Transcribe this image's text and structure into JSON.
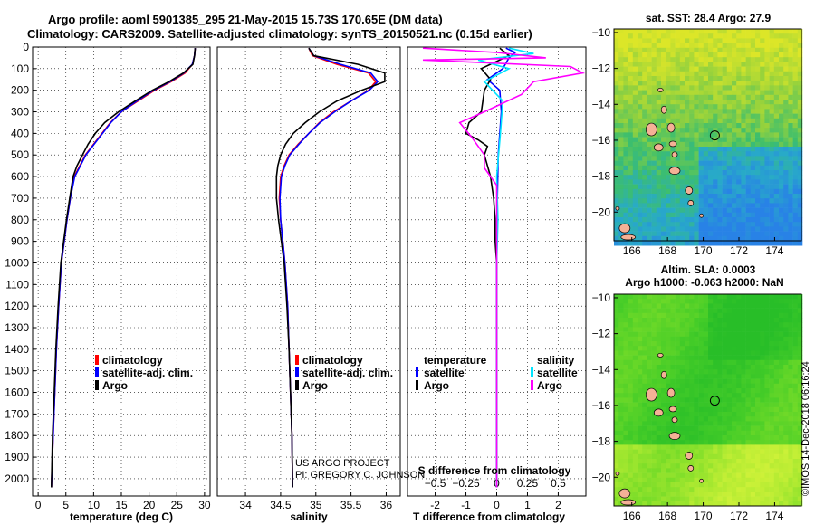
{
  "title_line1": "Argo profile: aoml 5901385_295 21-May-2015 15.73S 170.65E (DM data)",
  "title_line2": "Climatology: CARS2009. Satellite-adjusted climatology: synTS_20150521.nc (0.15d earlier)",
  "colors": {
    "climatology": "#ff0000",
    "satellite": "#0000ff",
    "argo": "#000000",
    "sat_salinity": "#00e5ff",
    "argo_salinity": "#ff00ff",
    "land": "#f4b196"
  },
  "credits": {
    "line1": "US ARGO PROJECT",
    "line2": "PI: GREGORY C. JOHNSON"
  },
  "watermark": "©IMOS 14-Dec-2018 06:16:24",
  "chart_data": [
    {
      "id": "temperature",
      "type": "line",
      "xlabel": "temperature (deg C)",
      "xlim": [
        -1,
        31
      ],
      "xticks": [
        0,
        5,
        10,
        15,
        20,
        25,
        30
      ],
      "ylim": [
        2080,
        0
      ],
      "yticks": [
        0,
        100,
        200,
        300,
        400,
        500,
        600,
        700,
        800,
        900,
        1000,
        1100,
        1200,
        1300,
        1400,
        1500,
        1600,
        1700,
        1800,
        1900,
        2000
      ],
      "legend": {
        "placement": "lower-center",
        "entries": [
          "climatology",
          "satellite-adj. clim.",
          "Argo"
        ]
      },
      "series": [
        {
          "name": "climatology",
          "color": "#ff0000",
          "points": [
            [
              28.3,
              5
            ],
            [
              28.2,
              40
            ],
            [
              27.8,
              80
            ],
            [
              26.5,
              120
            ],
            [
              24,
              160
            ],
            [
              21,
              200
            ],
            [
              18,
              250
            ],
            [
              15,
              300
            ],
            [
              13,
              350
            ],
            [
              11.5,
              400
            ],
            [
              10,
              450
            ],
            [
              8.5,
              500
            ],
            [
              7.5,
              550
            ],
            [
              6.5,
              600
            ],
            [
              5.8,
              700
            ],
            [
              5.2,
              800
            ],
            [
              4.7,
              900
            ],
            [
              4.2,
              1000
            ],
            [
              3.7,
              1200
            ],
            [
              3.3,
              1400
            ],
            [
              3,
              1600
            ],
            [
              2.7,
              1800
            ],
            [
              2.4,
              2040
            ]
          ]
        },
        {
          "name": "satellite-adj. clim.",
          "color": "#0000ff",
          "points": [
            [
              28.3,
              5
            ],
            [
              28.2,
              40
            ],
            [
              27.8,
              80
            ],
            [
              26.3,
              120
            ],
            [
              23.8,
              160
            ],
            [
              20.8,
              200
            ],
            [
              17.8,
              250
            ],
            [
              15,
              300
            ],
            [
              13.1,
              350
            ],
            [
              11.6,
              400
            ],
            [
              10.1,
              450
            ],
            [
              8.6,
              500
            ],
            [
              7.6,
              550
            ],
            [
              6.6,
              600
            ],
            [
              5.8,
              700
            ],
            [
              5.2,
              800
            ],
            [
              4.7,
              900
            ],
            [
              4.2,
              1000
            ],
            [
              3.7,
              1200
            ],
            [
              3.3,
              1400
            ],
            [
              3,
              1600
            ],
            [
              2.7,
              1800
            ],
            [
              2.4,
              2040
            ]
          ]
        },
        {
          "name": "Argo",
          "color": "#000000",
          "points": [
            [
              28.3,
              5
            ],
            [
              28.2,
              40
            ],
            [
              27.9,
              80
            ],
            [
              26.2,
              120
            ],
            [
              23.6,
              160
            ],
            [
              20.6,
              200
            ],
            [
              17.5,
              250
            ],
            [
              14.5,
              300
            ],
            [
              12,
              350
            ],
            [
              10.3,
              400
            ],
            [
              9,
              450
            ],
            [
              8,
              500
            ],
            [
              7,
              550
            ],
            [
              6.3,
              600
            ],
            [
              5.7,
              700
            ],
            [
              5.1,
              800
            ],
            [
              4.6,
              900
            ],
            [
              4.1,
              1000
            ],
            [
              3.6,
              1200
            ],
            [
              3.2,
              1400
            ],
            [
              2.9,
              1600
            ],
            [
              2.6,
              1800
            ],
            [
              2.4,
              2040
            ]
          ]
        }
      ]
    },
    {
      "id": "salinity",
      "type": "line",
      "xlabel": "salinity",
      "xlim": [
        33.6,
        36.2
      ],
      "xticks": [
        34,
        34.5,
        35,
        35.5,
        36
      ],
      "ylim": [
        2080,
        0
      ],
      "legend": {
        "placement": "lower-center",
        "entries": [
          "climatology",
          "satellite-adj. clim.",
          "Argo"
        ]
      },
      "series": [
        {
          "name": "climatology",
          "color": "#ff0000",
          "points": [
            [
              34.9,
              5
            ],
            [
              34.95,
              40
            ],
            [
              35.3,
              80
            ],
            [
              35.75,
              120
            ],
            [
              35.85,
              160
            ],
            [
              35.75,
              200
            ],
            [
              35.5,
              250
            ],
            [
              35.25,
              300
            ],
            [
              35.05,
              350
            ],
            [
              34.9,
              400
            ],
            [
              34.75,
              450
            ],
            [
              34.62,
              500
            ],
            [
              34.55,
              550
            ],
            [
              34.5,
              600
            ],
            [
              34.48,
              700
            ],
            [
              34.5,
              800
            ],
            [
              34.53,
              900
            ],
            [
              34.56,
              1000
            ],
            [
              34.6,
              1200
            ],
            [
              34.62,
              1400
            ],
            [
              34.64,
              1600
            ],
            [
              34.66,
              1800
            ],
            [
              34.67,
              2040
            ]
          ]
        },
        {
          "name": "satellite-adj. clim.",
          "color": "#0000ff",
          "points": [
            [
              34.9,
              5
            ],
            [
              34.97,
              40
            ],
            [
              35.35,
              80
            ],
            [
              35.78,
              120
            ],
            [
              35.88,
              160
            ],
            [
              35.76,
              200
            ],
            [
              35.5,
              250
            ],
            [
              35.27,
              300
            ],
            [
              35.06,
              350
            ],
            [
              34.9,
              400
            ],
            [
              34.76,
              450
            ],
            [
              34.63,
              500
            ],
            [
              34.56,
              550
            ],
            [
              34.51,
              600
            ],
            [
              34.49,
              700
            ],
            [
              34.5,
              800
            ],
            [
              34.53,
              900
            ],
            [
              34.56,
              1000
            ],
            [
              34.6,
              1200
            ],
            [
              34.62,
              1400
            ],
            [
              34.64,
              1600
            ],
            [
              34.66,
              1800
            ],
            [
              34.67,
              2040
            ]
          ]
        },
        {
          "name": "Argo",
          "color": "#000000",
          "points": [
            [
              34.9,
              5
            ],
            [
              34.97,
              40
            ],
            [
              35.6,
              80
            ],
            [
              35.98,
              120
            ],
            [
              35.98,
              160
            ],
            [
              35.65,
              200
            ],
            [
              35.3,
              250
            ],
            [
              35.05,
              300
            ],
            [
              34.85,
              350
            ],
            [
              34.68,
              400
            ],
            [
              34.57,
              450
            ],
            [
              34.5,
              500
            ],
            [
              34.46,
              550
            ],
            [
              34.44,
              600
            ],
            [
              34.44,
              700
            ],
            [
              34.47,
              800
            ],
            [
              34.51,
              900
            ],
            [
              34.55,
              1000
            ],
            [
              34.59,
              1200
            ],
            [
              34.62,
              1400
            ],
            [
              34.64,
              1600
            ],
            [
              34.66,
              1800
            ],
            [
              34.67,
              2040
            ]
          ]
        }
      ]
    },
    {
      "id": "difference",
      "type": "line",
      "xlabel": "T difference from climatology",
      "x2label": "S difference from climatology",
      "xlim": [
        -2.9,
        2.9
      ],
      "xticks": [
        -2,
        -1,
        0,
        1,
        2
      ],
      "x2ticks": [
        -0.5,
        -0.25,
        0,
        0.25,
        0.5
      ],
      "ylim": [
        2080,
        0
      ],
      "legend": {
        "placement": "lower",
        "left_title": "temperature",
        "right_title": "salinity",
        "entries": [
          "satellite",
          "Argo",
          "satellite",
          "Argo"
        ]
      },
      "series": [
        {
          "name": "temperature satellite",
          "color": "#0000ff",
          "points": [
            [
              0.3,
              5
            ],
            [
              0.6,
              25
            ],
            [
              0.4,
              50
            ],
            [
              0.2,
              100
            ],
            [
              -0.3,
              150
            ],
            [
              0.1,
              200
            ],
            [
              0.15,
              300
            ],
            [
              0.1,
              400
            ],
            [
              0.05,
              500
            ],
            [
              0.02,
              700
            ],
            [
              0,
              1000
            ],
            [
              0,
              2040
            ]
          ]
        },
        {
          "name": "temperature Argo",
          "color": "#000000",
          "points": [
            [
              0.1,
              5
            ],
            [
              0.4,
              40
            ],
            [
              -0.5,
              100
            ],
            [
              -0.2,
              150
            ],
            [
              -0.4,
              200
            ],
            [
              -0.5,
              300
            ],
            [
              -0.9,
              350
            ],
            [
              -1,
              400
            ],
            [
              -0.6,
              430
            ],
            [
              -0.3,
              460
            ],
            [
              -0.4,
              500
            ],
            [
              -0.2,
              600
            ],
            [
              -0.1,
              700
            ],
            [
              -0.05,
              800
            ],
            [
              -0.05,
              900
            ],
            [
              0,
              1000
            ],
            [
              0,
              1100
            ],
            [
              0,
              2040
            ]
          ]
        },
        {
          "name": "salinity satellite",
          "color": "#00e5ff",
          "points": [
            [
              0.1,
              5
            ],
            [
              0.3,
              30
            ],
            [
              -0.15,
              60
            ],
            [
              0.1,
              100
            ],
            [
              -0.1,
              160
            ],
            [
              0.05,
              250
            ],
            [
              0.03,
              400
            ],
            [
              0,
              600
            ],
            [
              0.01,
              800
            ],
            [
              0,
              1000
            ],
            [
              0,
              2040
            ]
          ]
        },
        {
          "name": "salinity Argo",
          "color": "#ff00ff",
          "points": [
            [
              -0.6,
              5
            ],
            [
              0,
              25
            ],
            [
              0.4,
              50
            ],
            [
              -0.6,
              60
            ],
            [
              0.6,
              90
            ],
            [
              0.7,
              120
            ],
            [
              0.3,
              160
            ],
            [
              0.2,
              220
            ],
            [
              -0.1,
              300
            ],
            [
              -0.3,
              350
            ],
            [
              -0.2,
              420
            ],
            [
              -0.1,
              500
            ],
            [
              -0.1,
              560
            ],
            [
              0,
              640
            ],
            [
              0,
              2040
            ]
          ]
        }
      ]
    },
    {
      "id": "sst_map",
      "type": "heatmap",
      "title": "sat. SST: 28.4 Argo: 27.9",
      "xticks": [
        166,
        168,
        170,
        172,
        174
      ],
      "yticks": [
        -10,
        -12,
        -14,
        -16,
        -18,
        -20
      ],
      "xlim": [
        165,
        175.5
      ],
      "ylim": [
        -21.6,
        -9.8
      ],
      "marker": [
        170.65,
        -15.73
      ]
    },
    {
      "id": "sla_map",
      "type": "heatmap",
      "title": "Altim. SLA: 0.0003",
      "subtitle": "Argo h1000: -0.063 h2000: NaN",
      "xticks": [
        166,
        168,
        170,
        172,
        174
      ],
      "yticks": [
        -10,
        -12,
        -14,
        -16,
        -18,
        -20
      ],
      "xlim": [
        165,
        175.5
      ],
      "ylim": [
        -21.6,
        -9.8
      ],
      "marker": [
        170.65,
        -15.73
      ]
    }
  ]
}
